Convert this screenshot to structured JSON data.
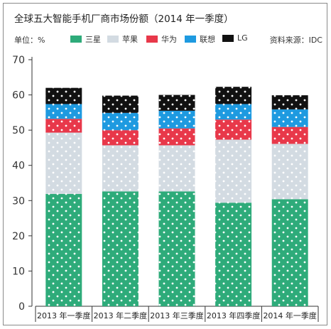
{
  "title": "全球五大智能手机厂商市场份额（2014 年一季度）",
  "unit_label": "单位：%",
  "source_label": "资料来源：IDC",
  "chart_data": {
    "type": "bar",
    "stacked": true,
    "categories": [
      "2013 年一季度",
      "2013 年二季度",
      "2013 年三季度",
      "2013 年四季度",
      "2014 年一季度"
    ],
    "series": [
      {
        "name": "三星",
        "color": "#2eab7a",
        "values": [
          31.9,
          32.6,
          32.6,
          29.4,
          30.4
        ]
      },
      {
        "name": "苹果",
        "color": "#d3dbe2",
        "values": [
          17.4,
          13.1,
          13.1,
          17.9,
          15.7
        ]
      },
      {
        "name": "华为",
        "color": "#e8384a",
        "values": [
          3.9,
          4.3,
          4.8,
          5.7,
          4.8
        ]
      },
      {
        "name": "联想",
        "color": "#1e9ae0",
        "values": [
          4.2,
          4.9,
          5.0,
          4.4,
          5.0
        ]
      },
      {
        "name": "LG",
        "color": "#111111",
        "values": [
          4.6,
          4.9,
          4.5,
          4.9,
          4.0
        ]
      }
    ],
    "ylim": [
      0,
      70
    ],
    "yticks": [
      0,
      10,
      20,
      30,
      40,
      50,
      60,
      70
    ],
    "legend_position": "top",
    "pattern": "white dots"
  }
}
